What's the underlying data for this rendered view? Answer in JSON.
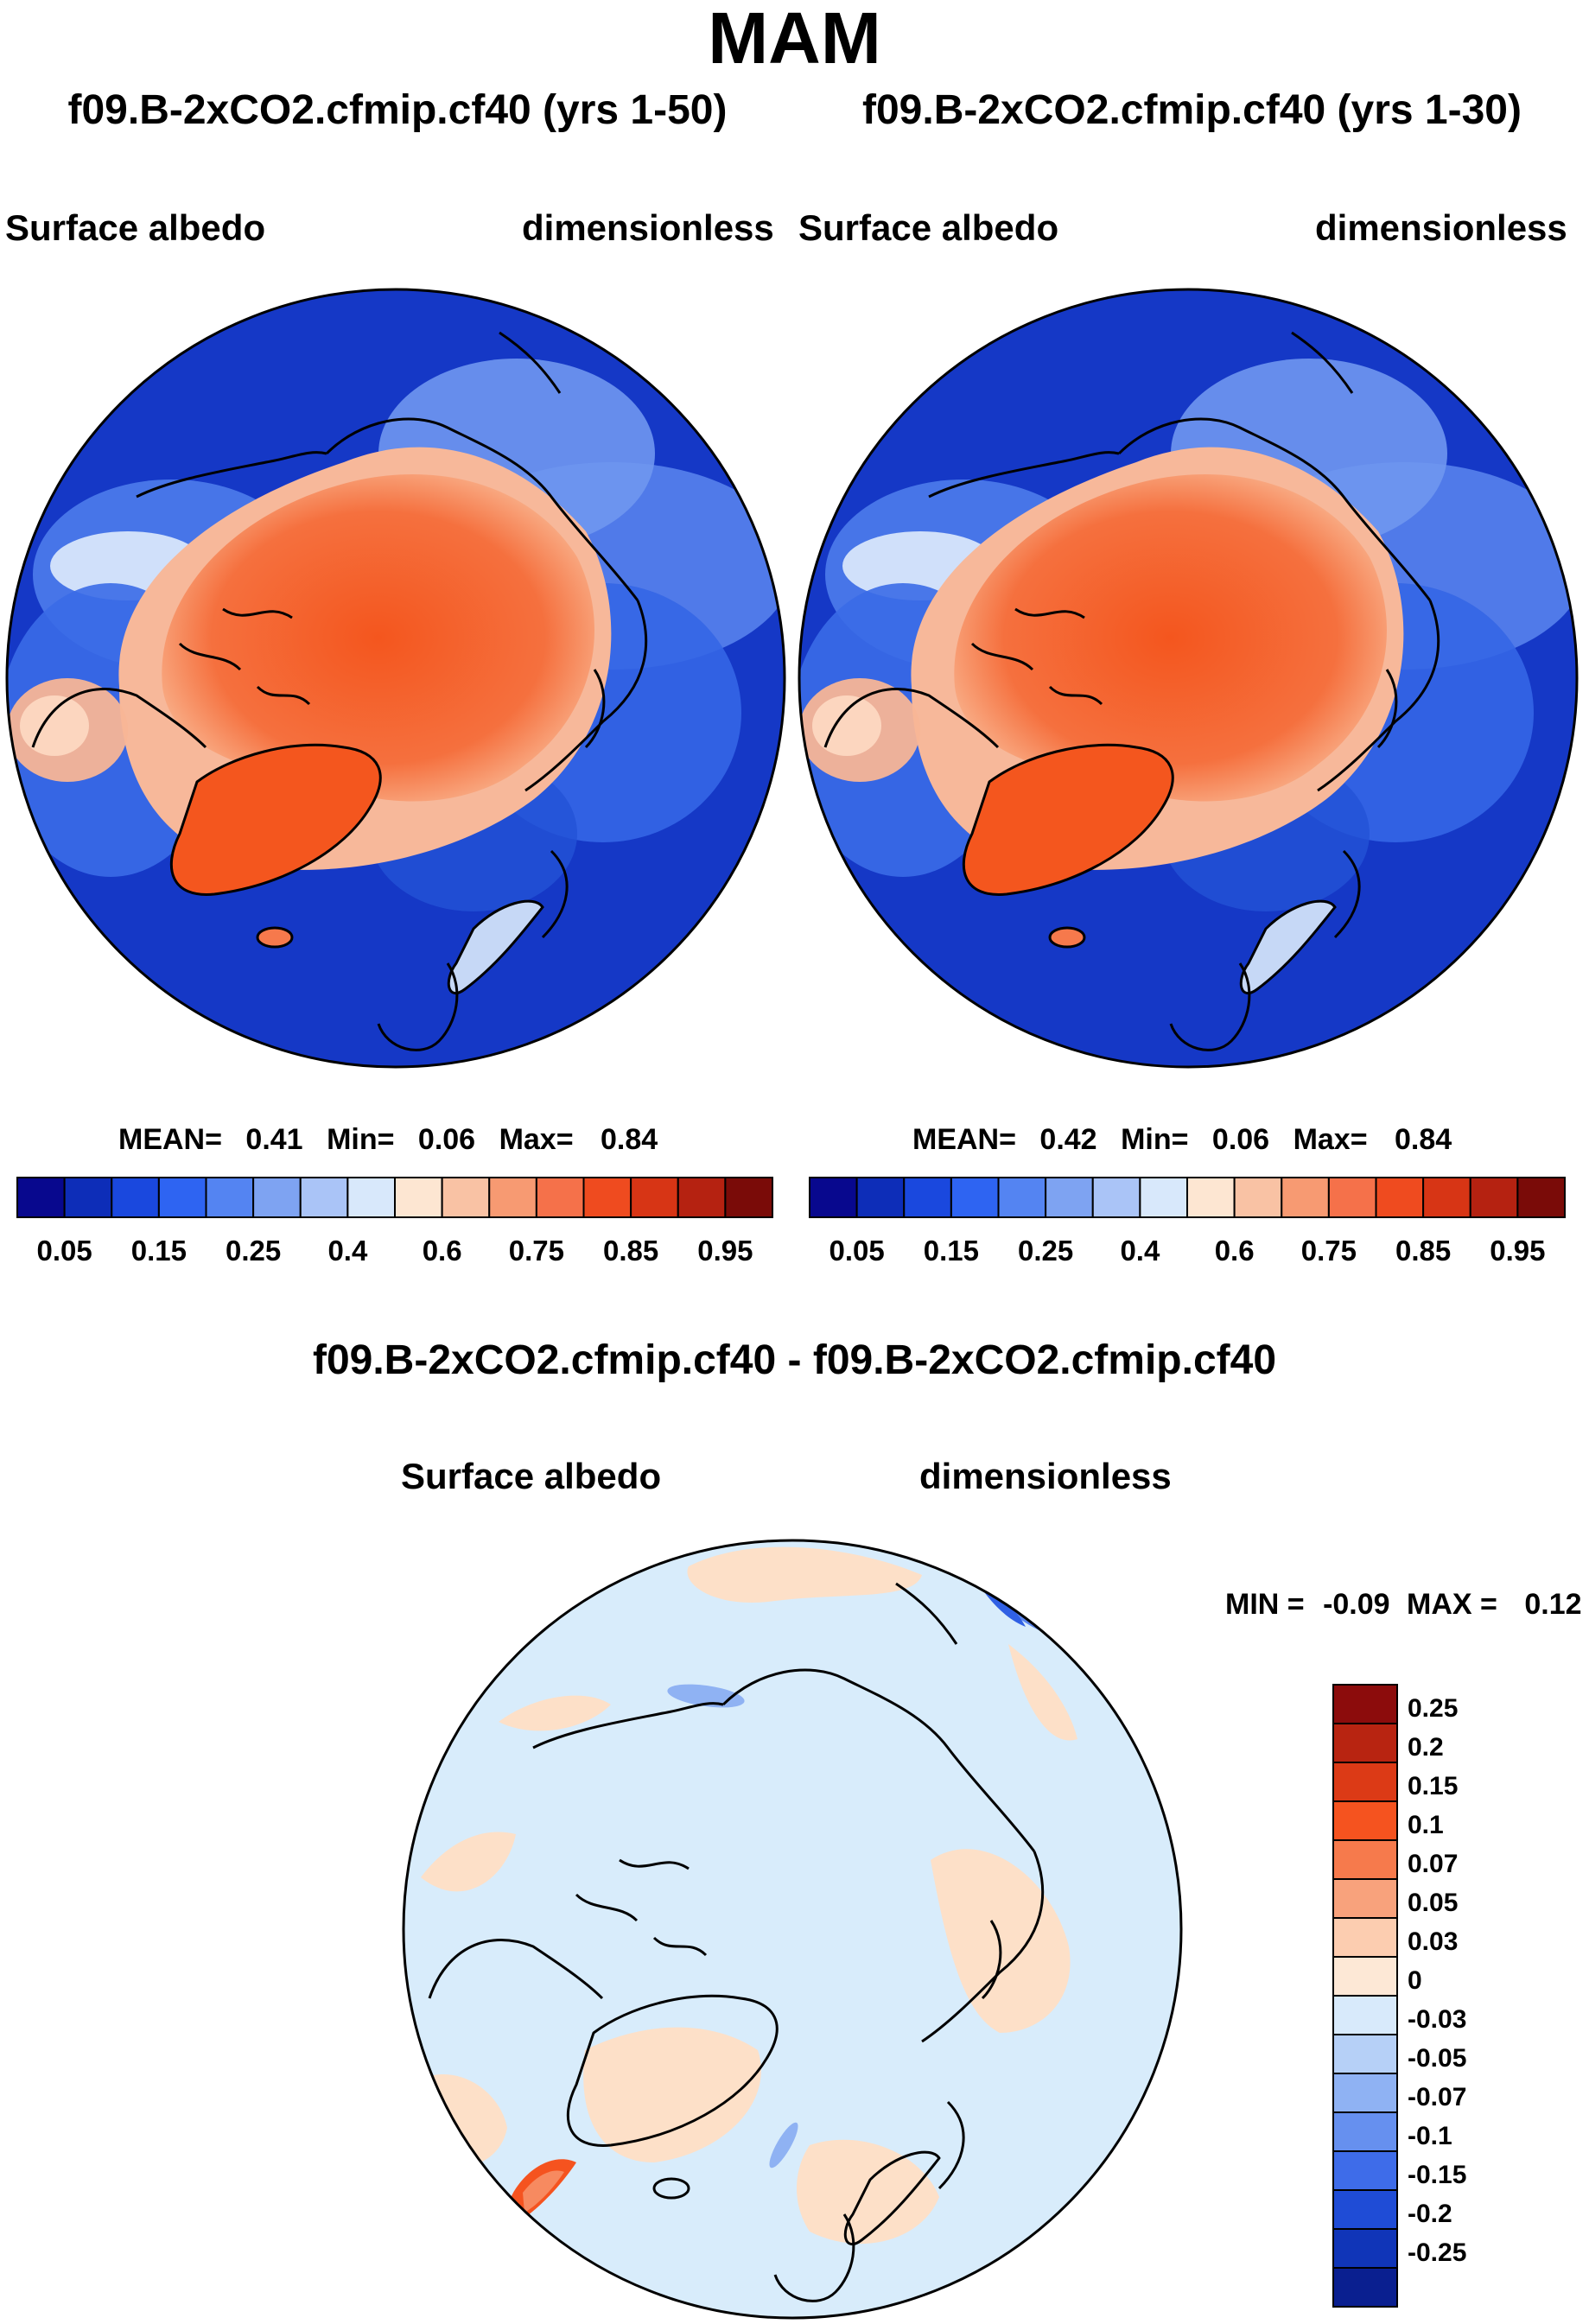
{
  "page": {
    "title": "MAM"
  },
  "colors": {
    "ocean_deep": "#0d2db8",
    "ocean_mid": "#2e64e6",
    "ice_orange": "#f4561e",
    "land_line": "#000000",
    "diff_bg_blue": "#d8ecfb",
    "diff_bg_peach": "#fde0c8"
  },
  "chart_data": [
    {
      "type": "heatmap",
      "name": "left-map",
      "title": "f09.B-2xCO2.cfmip.cf40 (yrs 1-50)",
      "left_label": "Surface albedo",
      "right_label": "dimensionless",
      "stats": {
        "mean_label": "MEAN=",
        "mean": "0.41",
        "min_label": "Min=",
        "min": "0.06",
        "max_label": "Max=",
        "max": "0.84"
      },
      "colorbar": {
        "levels": [
          "0.05",
          "0.1",
          "0.15",
          "0.2",
          "0.25",
          "0.3",
          "0.4",
          "0.5",
          "0.6",
          "0.7",
          "0.75",
          "0.8",
          "0.85",
          "0.9",
          "0.95"
        ],
        "tick_labels": [
          "0.05",
          "0.15",
          "0.25",
          "0.4",
          "0.6",
          "0.75",
          "0.85",
          "0.95"
        ],
        "colors": [
          "#08088e",
          "#0d2db8",
          "#1a48de",
          "#2e64f2",
          "#5484f2",
          "#7ea3f2",
          "#aac4f7",
          "#d8e8fb",
          "#fde6d2",
          "#f9c2a4",
          "#f79a72",
          "#f5714a",
          "#ef4b1f",
          "#d73515",
          "#b52211",
          "#7a0b08"
        ]
      }
    },
    {
      "type": "heatmap",
      "name": "right-map",
      "title": "f09.B-2xCO2.cfmip.cf40 (yrs 1-30)",
      "left_label": "Surface albedo",
      "right_label": "dimensionless",
      "stats": {
        "mean_label": "MEAN=",
        "mean": "0.42",
        "min_label": "Min=",
        "min": "0.06",
        "max_label": "Max=",
        "max": "0.84"
      },
      "colorbar": {
        "levels": [
          "0.05",
          "0.1",
          "0.15",
          "0.2",
          "0.25",
          "0.3",
          "0.4",
          "0.5",
          "0.6",
          "0.7",
          "0.75",
          "0.8",
          "0.85",
          "0.9",
          "0.95"
        ],
        "tick_labels": [
          "0.05",
          "0.15",
          "0.25",
          "0.4",
          "0.6",
          "0.75",
          "0.85",
          "0.95"
        ],
        "colors": [
          "#08088e",
          "#0d2db8",
          "#1a48de",
          "#2e64f2",
          "#5484f2",
          "#7ea3f2",
          "#aac4f7",
          "#d8e8fb",
          "#fde6d2",
          "#f9c2a4",
          "#f79a72",
          "#f5714a",
          "#ef4b1f",
          "#d73515",
          "#b52211",
          "#7a0b08"
        ]
      }
    },
    {
      "type": "heatmap",
      "name": "diff-map",
      "title": "f09.B-2xCO2.cfmip.cf40 - f09.B-2xCO2.cfmip.cf40",
      "left_label": "Surface albedo",
      "right_label": "dimensionless",
      "stats": {
        "min_label": "MIN =",
        "min": "-0.09",
        "max_label": "MAX =",
        "max": "0.12"
      },
      "colorbar": {
        "tick_labels": [
          "0.25",
          "0.2",
          "0.15",
          "0.1",
          "0.07",
          "0.05",
          "0.03",
          "0",
          "-0.03",
          "-0.05",
          "-0.07",
          "-0.1",
          "-0.15",
          "-0.2",
          "-0.25"
        ],
        "colors": [
          "#8c0c0c",
          "#b82411",
          "#dc3a16",
          "#f5531f",
          "#f67a4c",
          "#f8a27c",
          "#fccdb0",
          "#fde8d6",
          "#d8eafb",
          "#b6d0f7",
          "#8fb2f3",
          "#6690ef",
          "#3e6ce9",
          "#1f4cd6",
          "#1035b8",
          "#0a1f90"
        ]
      }
    }
  ]
}
